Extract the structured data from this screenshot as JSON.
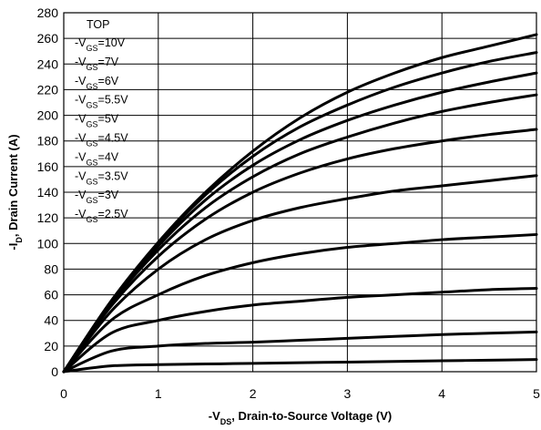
{
  "chart_data": {
    "type": "line",
    "xlabel": {
      "prefix": "-V",
      "sub": "DS",
      "suffix": ", Drain-to-Source Voltage (V)"
    },
    "ylabel": {
      "prefix": "-I",
      "sub": "D",
      "suffix": ", Drain Current (A)"
    },
    "xlim": [
      0,
      5
    ],
    "ylim": [
      0,
      280
    ],
    "xticks": [
      "0",
      "1",
      "2",
      "3",
      "4",
      "5"
    ],
    "yticks": [
      "0",
      "20",
      "40",
      "60",
      "80",
      "100",
      "120",
      "140",
      "160",
      "180",
      "200",
      "220",
      "240",
      "260",
      "280"
    ],
    "grid": true,
    "legend": {
      "placement": "top-left",
      "header": "TOP",
      "entries": [
        {
          "prefix": "-V",
          "sub": "GS",
          "value": "=10V"
        },
        {
          "prefix": "-V",
          "sub": "GS",
          "value": "=7V"
        },
        {
          "prefix": "-V",
          "sub": "GS",
          "value": "=6V"
        },
        {
          "prefix": "-V",
          "sub": "GS",
          "value": "=5.5V"
        },
        {
          "prefix": "-V",
          "sub": "GS",
          "value": "=5V"
        },
        {
          "prefix": "-V",
          "sub": "GS",
          "value": "=4.5V"
        },
        {
          "prefix": "-V",
          "sub": "GS",
          "value": "=4V"
        },
        {
          "prefix": "-V",
          "sub": "GS",
          "value": "=3.5V"
        },
        {
          "prefix": "-V",
          "sub": "GS",
          "value": "=3V"
        },
        {
          "prefix": "-V",
          "sub": "GS",
          "value": "=2.5V"
        }
      ]
    },
    "x": [
      0,
      0.5,
      1,
      1.5,
      2,
      2.5,
      3,
      3.5,
      4,
      4.5,
      5
    ],
    "series": [
      {
        "values": [
          0,
          55,
          101,
          140,
          172,
          198,
          218,
          233,
          245,
          254,
          263
        ]
      },
      {
        "values": [
          0,
          55,
          100,
          138,
          168,
          191,
          208,
          222,
          233,
          242,
          249
        ]
      },
      {
        "values": [
          0,
          54,
          98,
          134,
          161,
          181,
          196,
          208,
          218,
          226,
          233
        ]
      },
      {
        "values": [
          0,
          53,
          95,
          128,
          152,
          170,
          183,
          194,
          203,
          210,
          216
        ]
      },
      {
        "values": [
          0,
          51,
          90,
          119,
          140,
          155,
          166,
          174,
          180,
          185,
          189
        ]
      },
      {
        "values": [
          0,
          47,
          80,
          103,
          118,
          128,
          135,
          141,
          145,
          149,
          153
        ]
      },
      {
        "values": [
          0,
          40,
          60,
          75,
          85,
          92,
          97,
          100,
          103,
          105,
          107
        ]
      },
      {
        "values": [
          0,
          30,
          40,
          47,
          52,
          55,
          58,
          60,
          62,
          64,
          65
        ]
      },
      {
        "values": [
          0,
          16,
          20,
          22,
          23,
          24.5,
          26,
          27.5,
          29,
          30,
          31
        ]
      },
      {
        "values": [
          0,
          4.5,
          5.5,
          6,
          6.5,
          7,
          7.5,
          8,
          8.5,
          9,
          9.5
        ]
      }
    ]
  }
}
